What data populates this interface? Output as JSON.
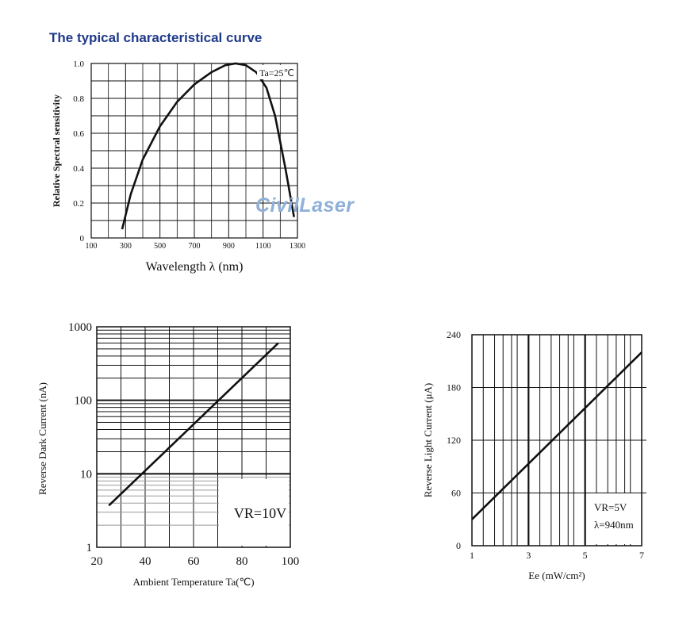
{
  "page_title": "The typical characteristical curve",
  "watermark": "CivilLaser",
  "chart_data": [
    {
      "type": "line",
      "title": "",
      "xlabel": "Wavelength λ (nm)",
      "ylabel": "Relative Spectral sensitivity",
      "annotation": "Ta=25℃",
      "xlim": [
        100,
        1300
      ],
      "ylim": [
        0,
        1.0
      ],
      "x_ticks": [
        "100",
        "300",
        "500",
        "700",
        "900",
        "1100",
        "1300"
      ],
      "y_ticks": [
        "0",
        "0.2",
        "0.4",
        "0.6",
        "0.8",
        "1.0"
      ],
      "grid": true,
      "series": [
        {
          "x": [
            280,
            330,
            400,
            500,
            600,
            700,
            800,
            880,
            940,
            1000,
            1060,
            1120,
            1170,
            1230,
            1280
          ],
          "y": [
            0.05,
            0.25,
            0.45,
            0.64,
            0.78,
            0.88,
            0.95,
            0.99,
            1.0,
            0.99,
            0.95,
            0.86,
            0.7,
            0.4,
            0.12
          ]
        }
      ]
    },
    {
      "type": "line",
      "title": "",
      "xlabel": "Ambient Temperature Ta(℃)",
      "ylabel": "Reverse Dark Current (nA)",
      "annotation": "VR=10V",
      "xlim": [
        20,
        100
      ],
      "ylim": [
        1,
        1000
      ],
      "y_scale": "log",
      "x_ticks": [
        "20",
        "40",
        "60",
        "80",
        "100"
      ],
      "y_ticks": [
        "1",
        "10",
        "100",
        "1000"
      ],
      "grid": true,
      "series": [
        {
          "x": [
            25,
            95
          ],
          "y": [
            3.7,
            600
          ]
        }
      ]
    },
    {
      "type": "line",
      "title": "",
      "xlabel": "Ee (mW/cm²)",
      "ylabel": "Reverse Light Current (μA)",
      "annotation": [
        "VR=5V",
        "λ=940nm"
      ],
      "xlim": [
        1,
        7
      ],
      "ylim": [
        0,
        240
      ],
      "x_ticks": [
        "1",
        "3",
        "5",
        "7"
      ],
      "y_ticks": [
        "0",
        "60",
        "120",
        "180",
        "240"
      ],
      "grid": true,
      "series": [
        {
          "x": [
            1,
            7
          ],
          "y": [
            30,
            220
          ]
        }
      ]
    }
  ]
}
